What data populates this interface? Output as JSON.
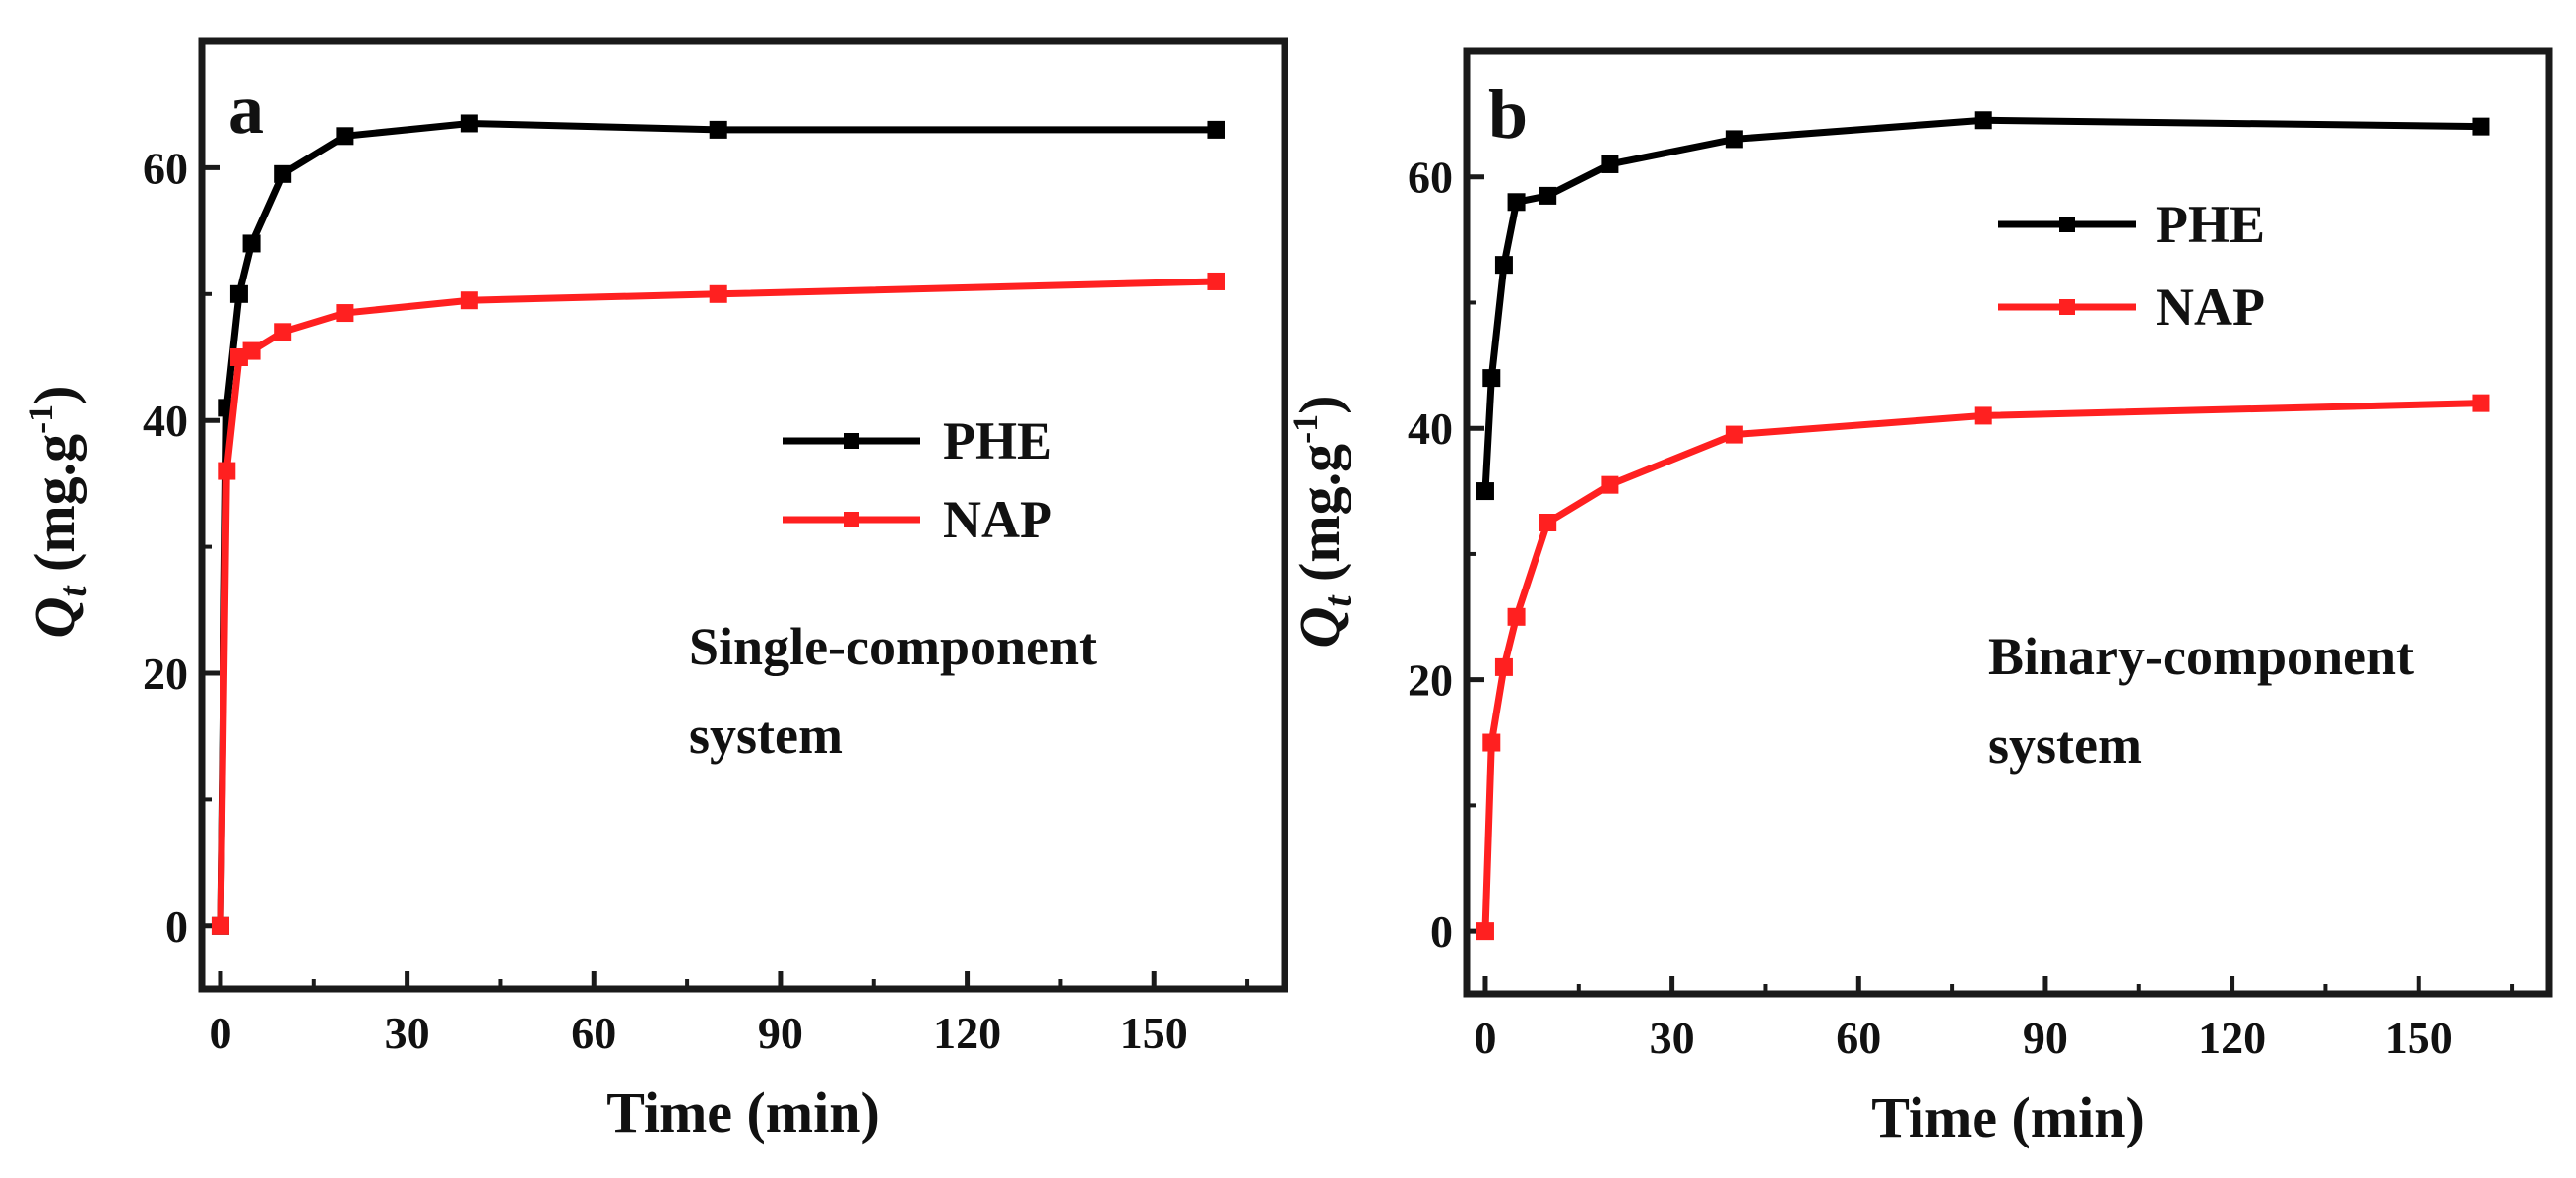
{
  "colors": {
    "PHE": "#000000",
    "NAP": "#ff2020",
    "frame": "#1a1a1a"
  },
  "chart_data": [
    {
      "type": "line",
      "panel_label": "a",
      "xlabel": "Time (min)",
      "ylabel": {
        "symbol": "Q",
        "subscript": "t",
        "units_prefix": "(mg.g",
        "units_sup": "-1",
        "units_suffix": ")"
      },
      "xlim": [
        -3,
        171
      ],
      "ylim": [
        -5,
        70
      ],
      "xticks": [
        0,
        30,
        60,
        90,
        120,
        150
      ],
      "yticks": [
        0,
        20,
        40,
        60
      ],
      "legend": [
        "PHE",
        "NAP"
      ],
      "annotation": [
        "Single-component",
        "system"
      ],
      "series": [
        {
          "name": "PHE",
          "x": [
            0,
            1,
            3,
            5,
            10,
            20,
            40,
            80,
            160
          ],
          "y": [
            0,
            41,
            50,
            54,
            59.5,
            62.5,
            63.5,
            63,
            63
          ]
        },
        {
          "name": "NAP",
          "x": [
            0,
            1,
            3,
            5,
            10,
            20,
            40,
            80,
            160
          ],
          "y": [
            0,
            36,
            45,
            45.5,
            47,
            48.5,
            49.5,
            50,
            51
          ]
        }
      ]
    },
    {
      "type": "line",
      "panel_label": "b",
      "xlabel": "Time (min)",
      "ylabel": {
        "symbol": "Q",
        "subscript": "t",
        "units_prefix": "(mg.g",
        "units_sup": "-1",
        "units_suffix": ")"
      },
      "xlim": [
        -3,
        171
      ],
      "ylim": [
        -5,
        70
      ],
      "xticks": [
        0,
        30,
        60,
        90,
        120,
        150
      ],
      "yticks": [
        0,
        20,
        40,
        60
      ],
      "legend": [
        "PHE",
        "NAP"
      ],
      "annotation": [
        "Binary-component",
        "system"
      ],
      "series": [
        {
          "name": "PHE",
          "x": [
            0,
            1,
            3,
            5,
            10,
            20,
            40,
            80,
            160
          ],
          "y": [
            35,
            44,
            53,
            58,
            58.5,
            61,
            63,
            64.5,
            64
          ]
        },
        {
          "name": "NAP",
          "x": [
            0,
            1,
            3,
            5,
            10,
            20,
            40,
            80,
            160
          ],
          "y": [
            0,
            15,
            21,
            25,
            32.5,
            35.5,
            39.5,
            41,
            42
          ]
        }
      ]
    }
  ]
}
